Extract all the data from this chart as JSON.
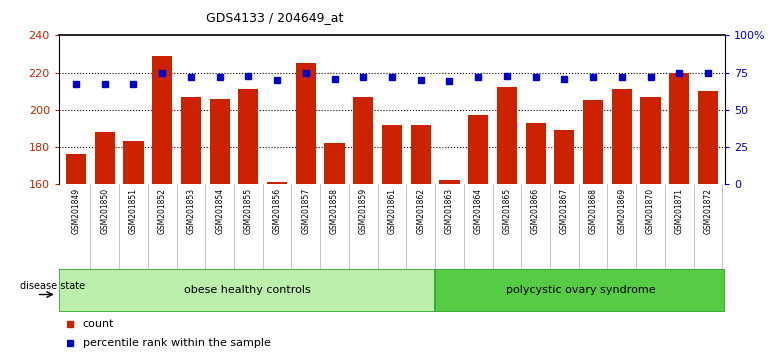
{
  "title": "GDS4133 / 204649_at",
  "samples": [
    "GSM201849",
    "GSM201850",
    "GSM201851",
    "GSM201852",
    "GSM201853",
    "GSM201854",
    "GSM201855",
    "GSM201856",
    "GSM201857",
    "GSM201858",
    "GSM201859",
    "GSM201861",
    "GSM201862",
    "GSM201863",
    "GSM201864",
    "GSM201865",
    "GSM201866",
    "GSM201867",
    "GSM201868",
    "GSM201869",
    "GSM201870",
    "GSM201871",
    "GSM201872"
  ],
  "counts": [
    176,
    188,
    183,
    229,
    207,
    206,
    211,
    161,
    225,
    182,
    207,
    192,
    192,
    162,
    197,
    212,
    193,
    189,
    205,
    211,
    207,
    220,
    210
  ],
  "percentiles": [
    67,
    67,
    67,
    75,
    72,
    72,
    73,
    70,
    75,
    71,
    72,
    72,
    70,
    69,
    72,
    73,
    72,
    71,
    72,
    72,
    72,
    75,
    75
  ],
  "bar_color": "#cc2200",
  "dot_color": "#0000cc",
  "ylim_left": [
    160,
    240
  ],
  "ylim_right": [
    0,
    100
  ],
  "yticks_left": [
    160,
    180,
    200,
    220,
    240
  ],
  "yticks_right": [
    0,
    25,
    50,
    75,
    100
  ],
  "ytick_labels_right": [
    "0",
    "25",
    "50",
    "75",
    "100%"
  ],
  "group1_label": "obese healthy controls",
  "group2_label": "polycystic ovary syndrome",
  "group1_count": 13,
  "group2_count": 10,
  "disease_state_label": "disease state",
  "legend_count_label": "count",
  "legend_pct_label": "percentile rank within the sample",
  "bg_color": "#ffffff",
  "tick_area_bg": "#cccccc",
  "group1_color": "#bbeeaa",
  "group2_color": "#55cc44",
  "group_border_color": "#33aa33",
  "dotted_line_color": "#000000",
  "spine_color": "#000000"
}
